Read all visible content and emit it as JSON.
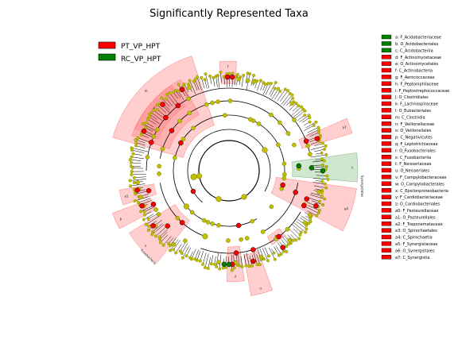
{
  "chart_data": {
    "type": "cladogram",
    "title": "Significantly Represented Taxa",
    "groups": [
      {
        "name": "PT_VP_HPT",
        "color": "#ff0000"
      },
      {
        "name": "RC_VP_HPT",
        "color": "#008000"
      }
    ],
    "taxa": [
      {
        "code": "a",
        "label": "a: F_Acidobacteriaceae",
        "group": "RC_VP_HPT"
      },
      {
        "code": "b",
        "label": "b: O_Acidobacteriales",
        "group": "RC_VP_HPT"
      },
      {
        "code": "c",
        "label": "c: C_Acidobacteriia",
        "group": "RC_VP_HPT"
      },
      {
        "code": "d",
        "label": "d: F_Actinomycetaceae",
        "group": "PT_VP_HPT"
      },
      {
        "code": "e",
        "label": "e: O_Actinomycetales",
        "group": "PT_VP_HPT"
      },
      {
        "code": "f",
        "label": "f: C_Actinobacteria",
        "group": "PT_VP_HPT"
      },
      {
        "code": "g",
        "label": "g: F_Aerococcaceae",
        "group": "PT_VP_HPT"
      },
      {
        "code": "h",
        "label": "h: F_Peptoniphilaceae",
        "group": "PT_VP_HPT"
      },
      {
        "code": "i",
        "label": "i: F_Peptostreptococcaceae",
        "group": "PT_VP_HPT"
      },
      {
        "code": "j",
        "label": "j: O_Clostridiales",
        "group": "PT_VP_HPT"
      },
      {
        "code": "k",
        "label": "k: F_Lachnospiraceae",
        "group": "PT_VP_HPT"
      },
      {
        "code": "l",
        "label": "l: O_Eubacteriales",
        "group": "PT_VP_HPT"
      },
      {
        "code": "m",
        "label": "m: C_Clostridia",
        "group": "PT_VP_HPT"
      },
      {
        "code": "n",
        "label": "n: F_Veillonellaceae",
        "group": "PT_VP_HPT"
      },
      {
        "code": "o",
        "label": "o: O_Veillonellales",
        "group": "PT_VP_HPT"
      },
      {
        "code": "p",
        "label": "p: C_Negativicutes",
        "group": "PT_VP_HPT"
      },
      {
        "code": "q",
        "label": "q: F_Leptotrichiaceae",
        "group": "PT_VP_HPT"
      },
      {
        "code": "r",
        "label": "r: O_Fusobacteriales",
        "group": "PT_VP_HPT"
      },
      {
        "code": "s",
        "label": "s: C_Fusobacteriia",
        "group": "PT_VP_HPT"
      },
      {
        "code": "t",
        "label": "t: F_Neisseriaceae",
        "group": "PT_VP_HPT"
      },
      {
        "code": "u",
        "label": "u: O_Neisseriales",
        "group": "PT_VP_HPT"
      },
      {
        "code": "v",
        "label": "v: F_Campylobacteraceae",
        "group": "PT_VP_HPT"
      },
      {
        "code": "w",
        "label": "w: O_Campylobacterales",
        "group": "PT_VP_HPT"
      },
      {
        "code": "x",
        "label": "x: C_Epsilonproteobacteria",
        "group": "PT_VP_HPT"
      },
      {
        "code": "y",
        "label": "y: F_Cardiobacteriaceae",
        "group": "PT_VP_HPT"
      },
      {
        "code": "z",
        "label": "z: O_Cardiobacteriales",
        "group": "PT_VP_HPT"
      },
      {
        "code": "a0",
        "label": "a0: F_Pasteurellaceae",
        "group": "PT_VP_HPT"
      },
      {
        "code": "a1",
        "label": "a1: O_Pasteurellales",
        "group": "PT_VP_HPT"
      },
      {
        "code": "a2",
        "label": "a2: F_Treponemataceae",
        "group": "PT_VP_HPT"
      },
      {
        "code": "a3",
        "label": "a3: O_Spirochaetales",
        "group": "PT_VP_HPT"
      },
      {
        "code": "a4",
        "label": "a4: C_Spirochaetia",
        "group": "PT_VP_HPT"
      },
      {
        "code": "a5",
        "label": "a5: F_Synergistaceae",
        "group": "PT_VP_HPT"
      },
      {
        "code": "a6",
        "label": "a6: O_Synergistales",
        "group": "PT_VP_HPT"
      },
      {
        "code": "a7",
        "label": "a7: C_Synergistia",
        "group": "PT_VP_HPT"
      }
    ],
    "outer_labels": [
      "Synergistetes",
      "Fusobacteria"
    ],
    "colors": {
      "background_node": "#bfbf00",
      "pt_node": "#ff0000",
      "rc_node": "#008000",
      "pt_shade": "#ff8080",
      "rc_shade": "#80c080",
      "branch": "#000000"
    }
  }
}
